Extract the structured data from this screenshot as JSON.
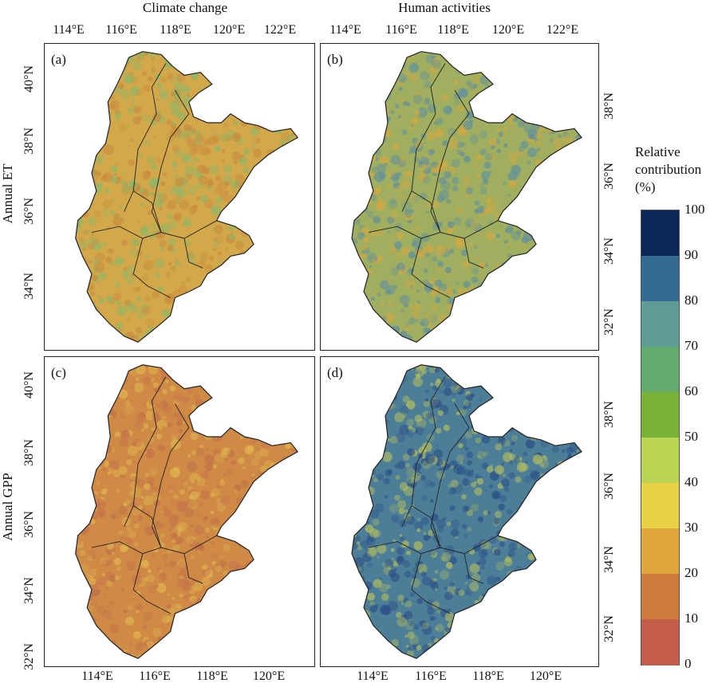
{
  "columns": {
    "left_title": "Climate change",
    "right_title": "Human activities"
  },
  "rows": {
    "top_title": "Annual ET",
    "bottom_title": "Annual GPP"
  },
  "panels": {
    "a": {
      "label": "(a)",
      "base_color": "#d2a84a",
      "tint": "#c98a3e",
      "accent": "#8ab86a"
    },
    "b": {
      "label": "(b)",
      "base_color": "#9fae5f",
      "tint": "#5e8fa0",
      "accent": "#d6a840"
    },
    "c": {
      "label": "(c)",
      "base_color": "#cf8a46",
      "tint": "#c2704a",
      "accent": "#e0b850"
    },
    "d": {
      "label": "(d)",
      "base_color": "#4d7e98",
      "tint": "#2a4e86",
      "accent": "#b6bf5c"
    }
  },
  "axes": {
    "top_ticks": [
      "114°E",
      "116°E",
      "118°E",
      "120°E",
      "122°E"
    ],
    "bottom_ticks": [
      "114°E",
      "116°E",
      "118°E",
      "120°E"
    ],
    "left_ticks_top": [
      "40°N",
      "38°N",
      "36°N",
      "34°N"
    ],
    "left_ticks_bottom": [
      "40°N",
      "38°N",
      "36°N",
      "34°N",
      "32°N"
    ],
    "right_ticks_top": [
      "38°N",
      "36°N",
      "34°N",
      "32°N"
    ],
    "right_ticks_bottom": [
      "38°N",
      "36°N",
      "34°N",
      "32°N"
    ]
  },
  "legend": {
    "title_lines": [
      "Relative",
      "contribution",
      "(%)"
    ],
    "labels": [
      "100",
      "90",
      "80",
      "70",
      "60",
      "50",
      "40",
      "30",
      "20",
      "10",
      "0"
    ],
    "colors_top_to_bottom": [
      "#0d2658",
      "#336b94",
      "#5f9c96",
      "#63ab6c",
      "#79b236",
      "#b9d553",
      "#e8d047",
      "#e0a63c",
      "#cd7a3a",
      "#c45d4c"
    ]
  }
}
